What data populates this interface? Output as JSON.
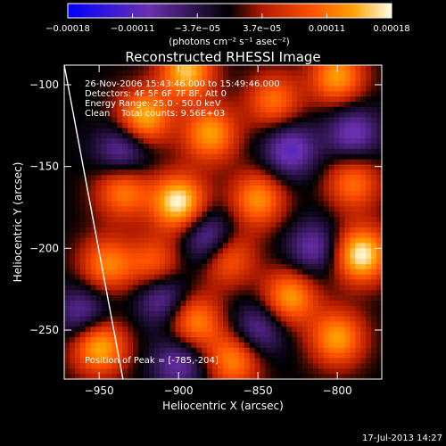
{
  "chart_data": {
    "type": "heatmap",
    "title": "Reconstructed RHESSI Image",
    "xlabel": "Heliocentric X (arcsec)",
    "ylabel": "Heliocentric Y (arcsec)",
    "xlim": [
      -972,
      -772
    ],
    "ylim": [
      -280,
      -88
    ],
    "x_ticks": [
      -950,
      -900,
      -850,
      -800
    ],
    "y_ticks": [
      -100,
      -150,
      -200,
      -250
    ],
    "x_tick_labels": [
      "−950",
      "−900",
      "−850",
      "−800"
    ],
    "y_tick_labels": [
      "−100",
      "−150",
      "−200",
      "−250"
    ],
    "colorbar": {
      "range": [
        -0.00018,
        0.00018
      ],
      "tick_labels": [
        "−0.00018",
        "−0.00011",
        "−3.7e−05",
        "3.7e−05",
        "0.00011",
        "0.00018"
      ],
      "unit_label": "(photons cm⁻² s⁻¹ asec⁻²)",
      "colors": [
        "#0000ff",
        "#6a2fb0",
        "#000000",
        "#b01a00",
        "#ff5000",
        "#ffa000",
        "#ffffe6"
      ]
    },
    "annotations": [
      "26-Nov-2006 15:43:46.000 to 15:49:46.000",
      "Detectors: 4F 5F 6F 7F 8F, Att 0",
      "Energy Range: 25.0 - 50.0 keV",
      "Clean    Total counts: 9.56E+03",
      "Position of Peak = [-785,-204]"
    ],
    "peak": {
      "x": -785,
      "y": -204
    },
    "limb_line": [
      [
        -972,
        -88
      ],
      [
        -935,
        -280
      ]
    ],
    "sources": [
      {
        "x": -900,
        "y": -172,
        "amp": 1.0
      },
      {
        "x": -785,
        "y": -204,
        "amp": 1.0
      },
      {
        "x": -922,
        "y": -120,
        "amp": 0.85
      },
      {
        "x": -880,
        "y": -130,
        "amp": 0.75
      },
      {
        "x": -840,
        "y": -110,
        "amp": 0.6
      },
      {
        "x": -800,
        "y": -95,
        "amp": 0.75
      },
      {
        "x": -895,
        "y": -92,
        "amp": 0.85
      },
      {
        "x": -935,
        "y": -165,
        "amp": 0.65
      },
      {
        "x": -850,
        "y": -170,
        "amp": 0.7
      },
      {
        "x": -790,
        "y": -160,
        "amp": 0.6
      },
      {
        "x": -945,
        "y": -210,
        "amp": 0.65
      },
      {
        "x": -870,
        "y": -205,
        "amp": 0.7
      },
      {
        "x": -830,
        "y": -230,
        "amp": 0.75
      },
      {
        "x": -950,
        "y": -260,
        "amp": 0.85
      },
      {
        "x": -890,
        "y": -245,
        "amp": 0.7
      },
      {
        "x": -800,
        "y": -255,
        "amp": 0.75
      },
      {
        "x": -865,
        "y": -268,
        "amp": 0.7
      },
      {
        "x": -915,
        "y": -210,
        "amp": 0.55
      },
      {
        "x": -935,
        "y": -140,
        "amp": -0.55
      },
      {
        "x": -880,
        "y": -195,
        "amp": -0.7
      },
      {
        "x": -830,
        "y": -140,
        "amp": -0.6
      },
      {
        "x": -790,
        "y": -130,
        "amp": -0.55
      },
      {
        "x": -910,
        "y": -230,
        "amp": -0.55
      },
      {
        "x": -850,
        "y": -250,
        "amp": -0.5
      },
      {
        "x": -815,
        "y": -200,
        "amp": -0.5
      },
      {
        "x": -960,
        "y": -240,
        "amp": -0.5
      },
      {
        "x": -900,
        "y": -270,
        "amp": -0.5
      }
    ]
  },
  "footer": {
    "timestamp": "17-Jul-2013 14:27"
  }
}
